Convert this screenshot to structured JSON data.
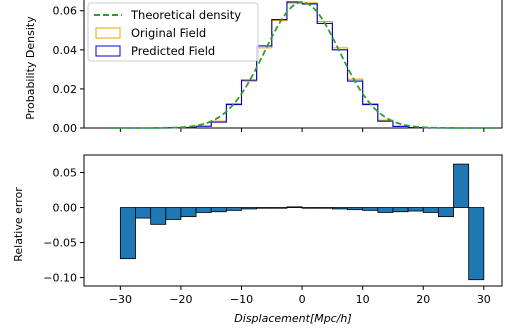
{
  "chart_data": [
    {
      "type": "line",
      "xlabel": "",
      "ylabel": "Probability Density",
      "xlim": [
        -36,
        33
      ],
      "ylim": [
        0,
        0.0655
      ],
      "yticks": [
        0.0,
        0.02,
        0.04,
        0.06
      ],
      "ytick_labels": [
        "0.00",
        "0.02",
        "0.04",
        "0.06"
      ],
      "xticks": [
        -30,
        -20,
        -10,
        0,
        10,
        20,
        30
      ],
      "legend": {
        "position": "upper-left"
      },
      "bin_edges": [
        -30,
        -27.5,
        -25,
        -22.5,
        -20,
        -17.5,
        -15,
        -12.5,
        -10,
        -7.5,
        -5,
        -2.5,
        0,
        2.5,
        5,
        7.5,
        10,
        12.5,
        15,
        17.5,
        20,
        22.5,
        25,
        27.5,
        30
      ],
      "series": [
        {
          "name": "Theoretical density",
          "kind": "curve",
          "mean": 0,
          "std": 6.2,
          "color": "#2ca02c"
        },
        {
          "name": "Original Field",
          "kind": "step",
          "color": "#f0a000",
          "values": [
            0.0,
            0.0,
            0.0,
            0.0001,
            0.0002,
            0.0009,
            0.0035,
            0.0125,
            0.024,
            0.041,
            0.055,
            0.064,
            0.064,
            0.0545,
            0.041,
            0.025,
            0.0125,
            0.004,
            0.0009,
            0.0002,
            0.0,
            0.0,
            0.0,
            0.0
          ]
        },
        {
          "name": "Predicted Field",
          "kind": "step",
          "color": "#0000cc",
          "values": [
            0.0,
            0.0,
            0.0,
            0.0001,
            0.0002,
            0.0009,
            0.003,
            0.012,
            0.0245,
            0.042,
            0.0555,
            0.0645,
            0.0635,
            0.0535,
            0.04,
            0.024,
            0.012,
            0.0035,
            0.0008,
            0.0002,
            0.0,
            0.0,
            0.0,
            0.0
          ]
        }
      ]
    },
    {
      "type": "bar",
      "xlabel": "Displacement[Mpc/h]",
      "ylabel": "Relative error",
      "xlim": [
        -36,
        33
      ],
      "ylim": [
        -0.112,
        0.075
      ],
      "yticks": [
        0.05,
        0.0,
        -0.05,
        -0.1
      ],
      "ytick_labels": [
        "0.05",
        "0.00",
        "−0.05",
        "−0.10"
      ],
      "xticks": [
        -30,
        -20,
        -10,
        0,
        10,
        20,
        30
      ],
      "xtick_labels": [
        "−30",
        "−20",
        "−10",
        "0",
        "10",
        "20",
        "30"
      ],
      "bar_color": "#1f77b4",
      "bin_edges": [
        -30,
        -27.5,
        -25,
        -22.5,
        -20,
        -17.5,
        -15,
        -12.5,
        -10,
        -7.5,
        -5,
        -2.5,
        0,
        2.5,
        5,
        7.5,
        10,
        12.5,
        15,
        17.5,
        20,
        22.5,
        25,
        27.5,
        30
      ],
      "values": [
        -0.073,
        -0.015,
        -0.024,
        -0.017,
        -0.013,
        -0.007,
        -0.006,
        -0.004,
        -0.002,
        -0.001,
        -0.001,
        0.001,
        -0.001,
        -0.001,
        -0.002,
        -0.003,
        -0.004,
        -0.007,
        -0.006,
        -0.005,
        -0.007,
        -0.013,
        0.062,
        -0.103
      ]
    }
  ]
}
